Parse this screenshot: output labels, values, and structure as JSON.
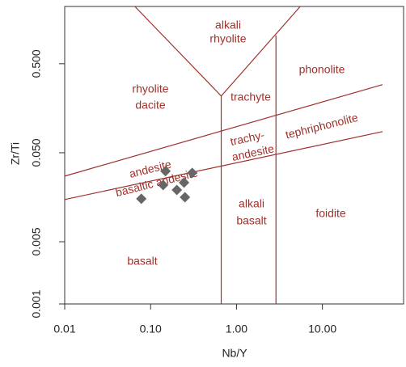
{
  "chart_data": {
    "type": "scatter",
    "x_label": "Nb/Y",
    "y_label": "Zr/Ti",
    "log_x": true,
    "log_y": true,
    "xlim": [
      0.01,
      90
    ],
    "ylim": [
      0.001,
      2.2
    ],
    "xticks": [
      0.01,
      {
        "value": 0.1,
        "label": "0.10"
      },
      {
        "value": 1,
        "label": "1.00"
      },
      {
        "value": 10,
        "label": "10.00"
      }
    ],
    "yticks": [
      {
        "value": 0.001,
        "label": "0.001"
      },
      {
        "value": 0.005,
        "label": "0.005"
      },
      {
        "value": 0.05,
        "label": "0.050"
      },
      {
        "value": 0.5,
        "label": "0.500"
      }
    ],
    "marker_color": "#666666",
    "boundary_color": "#a0302a",
    "x": [
      0.149,
      0.305,
      0.14,
      0.245,
      0.202,
      0.078,
      0.251
    ],
    "values": [
      0.031,
      0.0297,
      0.0217,
      0.0231,
      0.0191,
      0.0152,
      0.0158
    ],
    "field_boundaries": [
      {
        "x": [
          0.01,
          50
        ],
        "y": [
          0.0273,
          0.291
        ]
      },
      {
        "x": [
          0.01,
          50
        ],
        "y": [
          0.0149,
          0.0863
        ]
      },
      {
        "x": [
          0.0656,
          0.664,
          5.52
        ],
        "y": [
          2.2,
          0.217,
          2.2
        ]
      },
      {
        "x": [
          0.664,
          0.664
        ],
        "y": [
          0.217,
          0.001
        ]
      },
      {
        "x": [
          2.88,
          2.88
        ],
        "y": [
          1.04,
          0.001
        ]
      }
    ],
    "field_labels": [
      [
        "alkali",
        "rhyolite"
      ],
      [
        "rhyolite",
        "dacite"
      ],
      [
        "trachyte"
      ],
      [
        "phonolite"
      ],
      [
        "trachy-",
        "andesite"
      ],
      [
        "tephriphonolite"
      ],
      [
        "andesite"
      ],
      [
        "basaltic andesite"
      ],
      [
        "alkali",
        "basalt"
      ],
      [
        "foidite"
      ],
      [
        "basalt"
      ]
    ]
  }
}
